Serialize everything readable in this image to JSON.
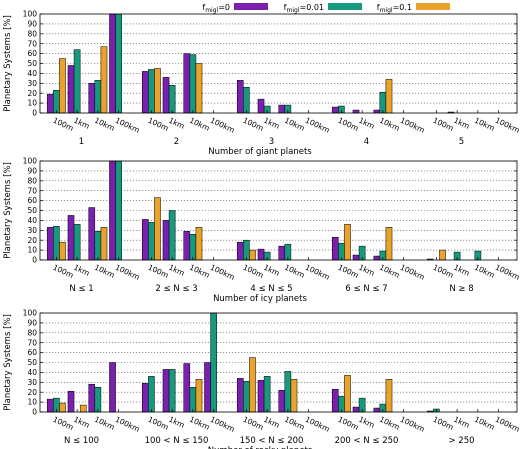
{
  "legend": {
    "items": [
      {
        "prefix": "f",
        "sub": "migl",
        "suffix": "=0",
        "color": "#7a1fb0"
      },
      {
        "prefix": "f",
        "sub": "migl",
        "suffix": "=0.01",
        "color": "#159a7e"
      },
      {
        "prefix": "f",
        "sub": "migl",
        "suffix": "=0.1",
        "color": "#eaa22c"
      }
    ]
  },
  "chart_data": [
    {
      "type": "bar",
      "ylabel": "Planetary Systems [%]",
      "xlabel": "Number of giant planets",
      "ylim": [
        0,
        100
      ],
      "yticks": [
        0,
        10,
        20,
        30,
        40,
        50,
        60,
        70,
        80,
        90,
        100
      ],
      "grid": "horizontal-dotted",
      "groups": [
        "1",
        "2",
        "3",
        "4",
        "5"
      ],
      "subcategories": [
        "100m",
        "1km",
        "10km",
        "100km"
      ],
      "series": [
        {
          "name": "fmigl=0",
          "color": "#7a1fb0",
          "values": [
            [
              19,
              48,
              30,
              100
            ],
            [
              42,
              36,
              60,
              0
            ],
            [
              33,
              14,
              8,
              0
            ],
            [
              6,
              3,
              3,
              0
            ],
            [
              0,
              1,
              0,
              0
            ]
          ]
        },
        {
          "name": "fmigl=0.01",
          "color": "#159a7e",
          "values": [
            [
              23,
              64,
              33,
              100
            ],
            [
              44,
              28,
              59,
              0
            ],
            [
              26,
              7,
              8,
              0
            ],
            [
              7,
              0,
              21,
              0
            ],
            [
              0,
              0,
              0,
              0
            ]
          ]
        },
        {
          "name": "fmigl=0.1",
          "color": "#eaa22c",
          "values": [
            [
              55,
              0,
              67,
              0
            ],
            [
              45,
              0,
              50,
              0
            ],
            [
              0,
              0,
              0,
              0
            ],
            [
              0,
              0,
              34,
              0
            ],
            [
              0,
              0,
              0,
              0
            ]
          ]
        }
      ]
    },
    {
      "type": "bar",
      "ylabel": "Planetary Systems [%]",
      "xlabel": "Number of icy planets",
      "ylim": [
        0,
        100
      ],
      "yticks": [
        0,
        10,
        20,
        30,
        40,
        50,
        60,
        70,
        80,
        90,
        100
      ],
      "grid": "horizontal-dotted",
      "groups": [
        "N ≤ 1",
        "2 ≤ N ≤ 3",
        "4 ≤ N ≤ 5",
        "6 ≤ N ≤ 7",
        "N ≥ 8"
      ],
      "subcategories": [
        "100m",
        "1km",
        "10km",
        "100km"
      ],
      "series": [
        {
          "name": "fmigl=0",
          "color": "#7a1fb0",
          "values": [
            [
              33,
              45,
              53,
              100
            ],
            [
              41,
              40,
              29,
              0
            ],
            [
              18,
              11,
              14,
              0
            ],
            [
              23,
              5,
              4,
              0
            ],
            [
              1,
              0,
              0,
              0
            ]
          ]
        },
        {
          "name": "fmigl=0.01",
          "color": "#159a7e",
          "values": [
            [
              34,
              36,
              29,
              100
            ],
            [
              38,
              50,
              26,
              0
            ],
            [
              20,
              8,
              16,
              0
            ],
            [
              17,
              14,
              9,
              0
            ],
            [
              0,
              8,
              9,
              0
            ]
          ]
        },
        {
          "name": "fmigl=0.1",
          "color": "#eaa22c",
          "values": [
            [
              18,
              0,
              33,
              0
            ],
            [
              63,
              0,
              33,
              0
            ],
            [
              10,
              0,
              0,
              0
            ],
            [
              36,
              0,
              33,
              0
            ],
            [
              10,
              0,
              0,
              0
            ]
          ]
        }
      ]
    },
    {
      "type": "bar",
      "ylabel": "Planetary Systems [%]",
      "xlabel": "Number of rocky planets",
      "ylim": [
        0,
        100
      ],
      "yticks": [
        0,
        10,
        20,
        30,
        40,
        50,
        60,
        70,
        80,
        90,
        100
      ],
      "grid": "horizontal-dotted",
      "groups": [
        "N ≤ 100",
        "100 < N ≤ 150",
        "150 < N ≤ 200",
        "200 < N ≤ 250",
        "> 250"
      ],
      "subcategories": [
        "100m",
        "1km",
        "10km",
        "100km"
      ],
      "series": [
        {
          "name": "fmigl=0",
          "color": "#7a1fb0",
          "values": [
            [
              13,
              21,
              28,
              50
            ],
            [
              29,
              43,
              49,
              50
            ],
            [
              34,
              32,
              22,
              0
            ],
            [
              23,
              5,
              4,
              0
            ],
            [
              1,
              0,
              0,
              0
            ]
          ]
        },
        {
          "name": "fmigl=0.01",
          "color": "#159a7e",
          "values": [
            [
              14,
              0,
              25,
              0
            ],
            [
              36,
              43,
              25,
              100
            ],
            [
              31,
              36,
              41,
              0
            ],
            [
              16,
              14,
              8,
              0
            ],
            [
              3,
              0,
              0,
              0
            ]
          ]
        },
        {
          "name": "fmigl=0.1",
          "color": "#eaa22c",
          "values": [
            [
              9,
              7,
              0,
              0
            ],
            [
              0,
              0,
              33,
              0
            ],
            [
              55,
              0,
              33,
              0
            ],
            [
              37,
              0,
              33,
              0
            ],
            [
              0,
              0,
              0,
              0
            ]
          ]
        }
      ]
    }
  ]
}
